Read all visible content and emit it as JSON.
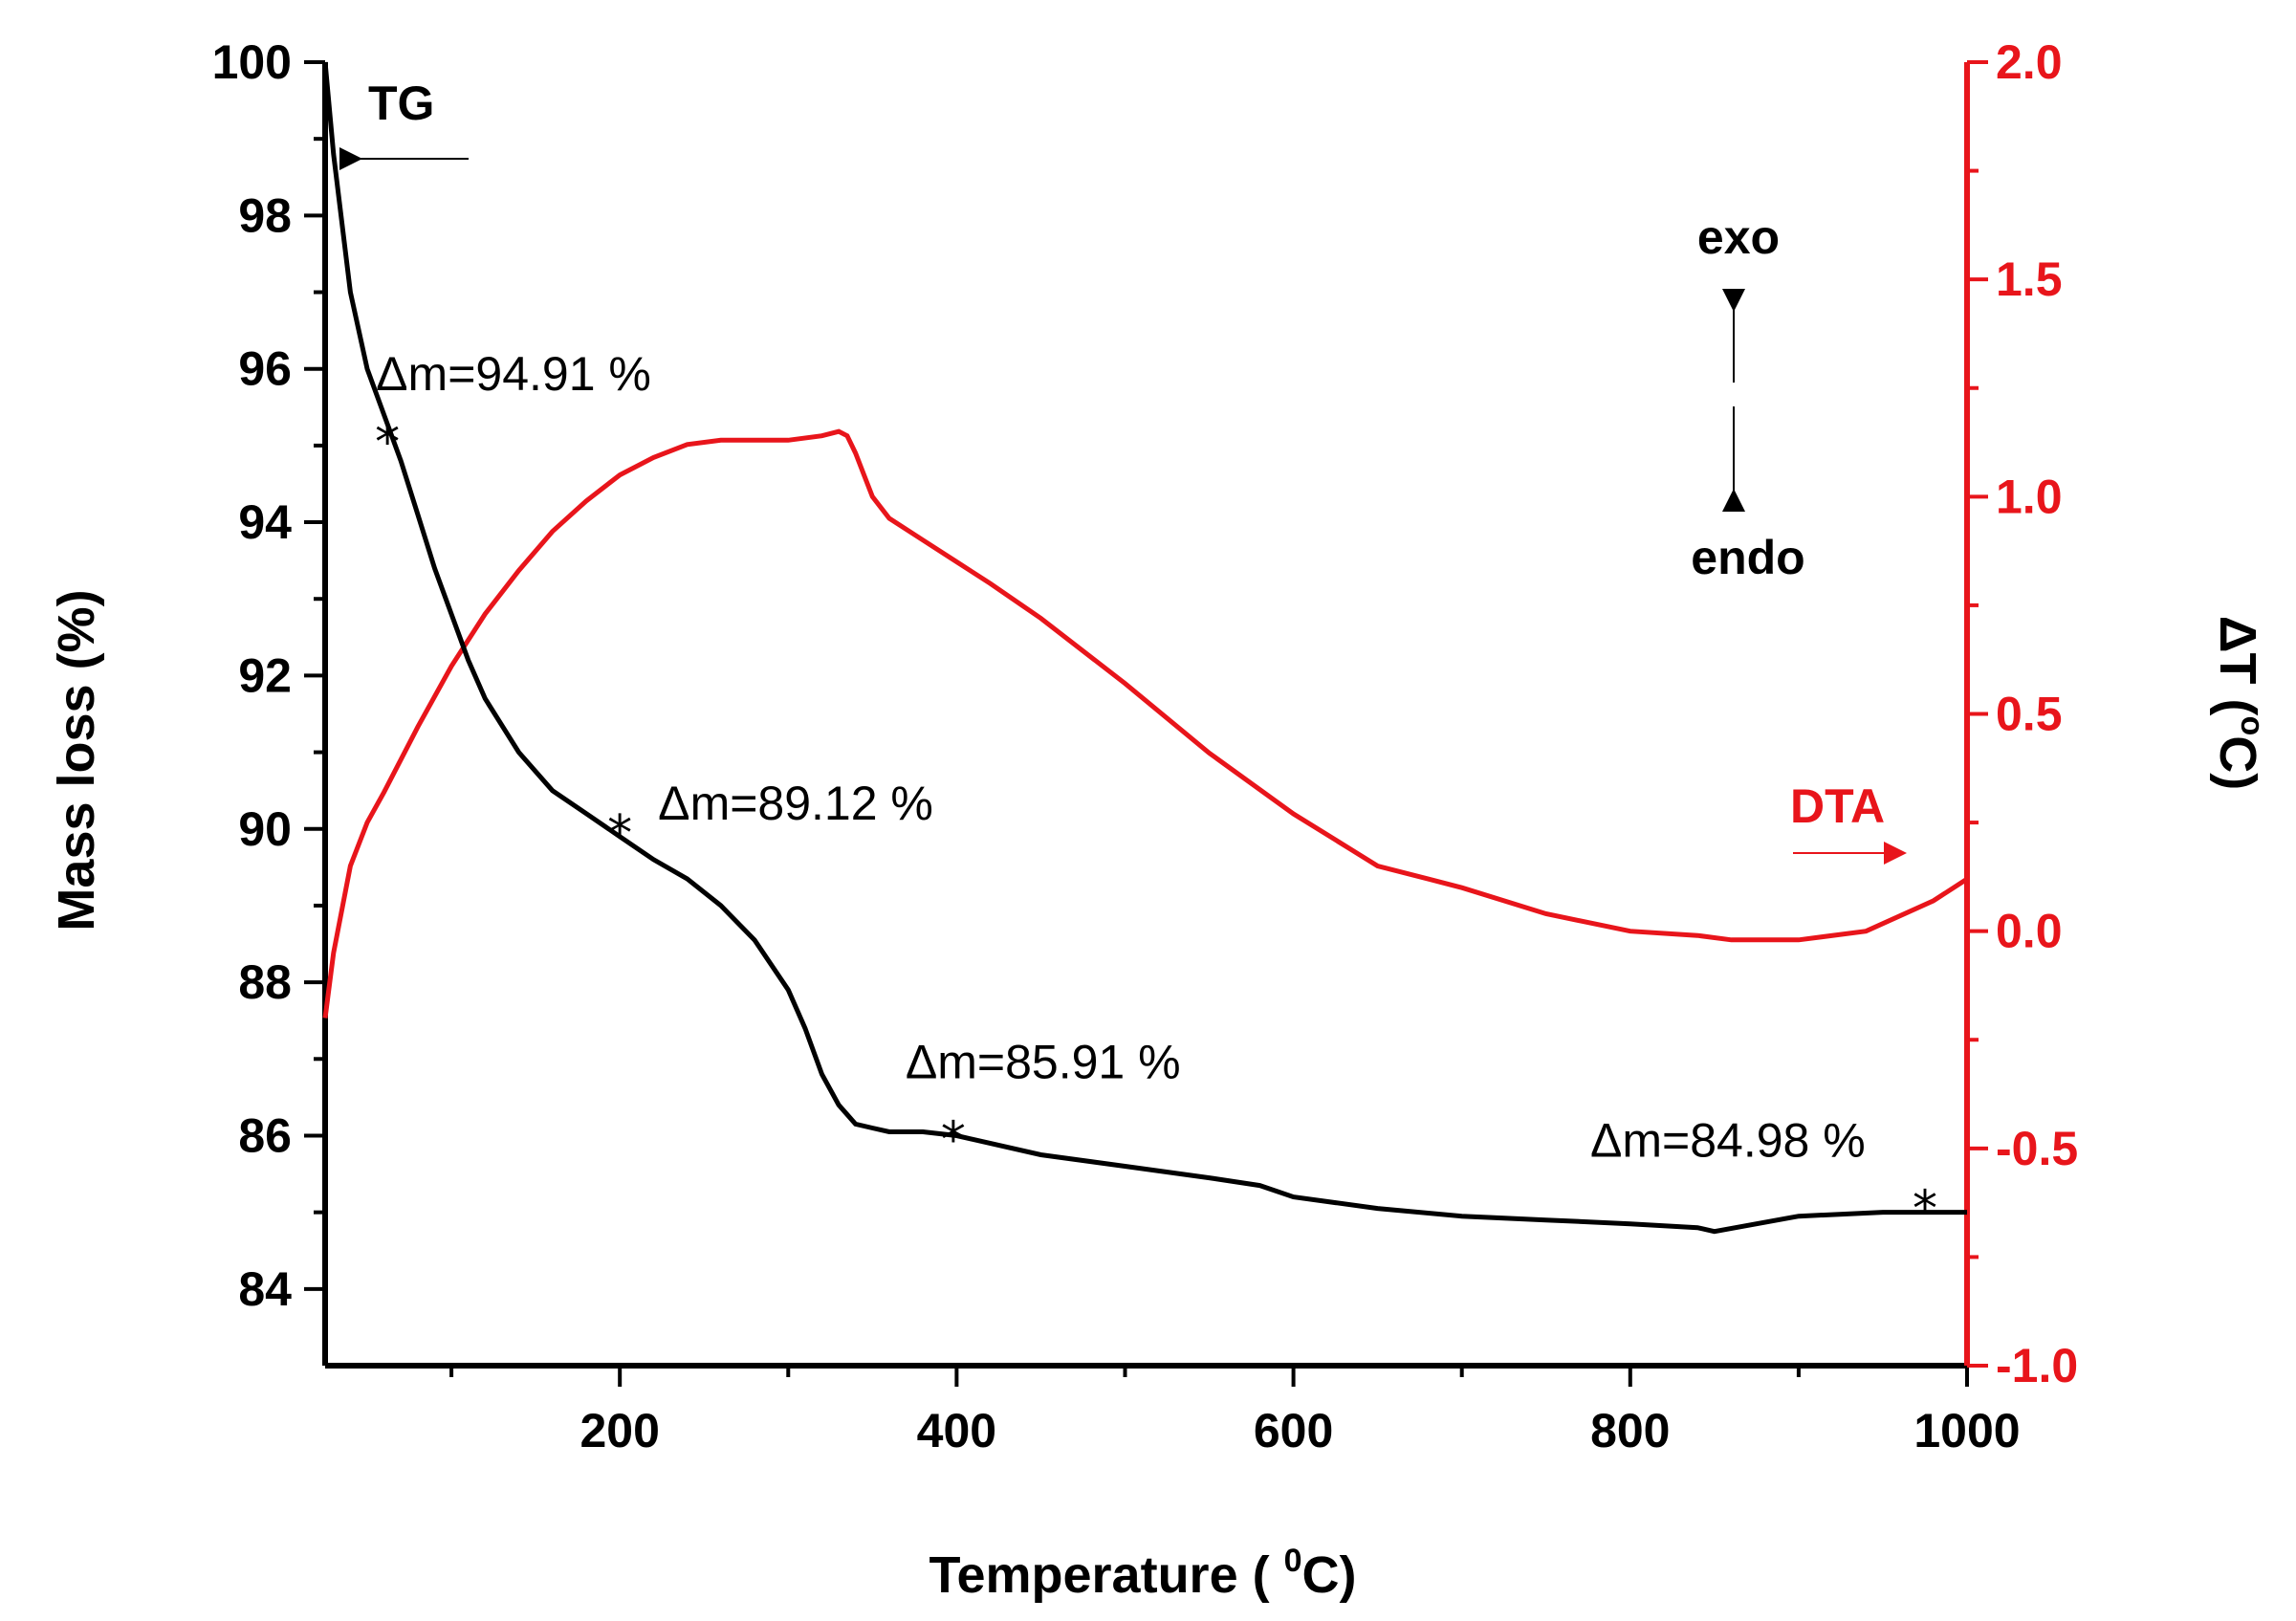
{
  "chart_data": {
    "type": "line",
    "xlabel": "Temperature ( °C)",
    "xlabel_main": "Temperature ( ",
    "xlabel_sup": "0",
    "xlabel_tail": "C)",
    "ylabel_left": "Mass loss (%)",
    "ylabel_right": "ΔT (°C)",
    "ylabel_right_main": "ΔT (",
    "ylabel_right_sup": "o",
    "ylabel_right_tail": "C)",
    "xlim": [
      25,
      1000
    ],
    "ylim_left": [
      83,
      100
    ],
    "ylim_right": [
      -1.0,
      2.0
    ],
    "x_ticks": [
      200,
      400,
      600,
      800,
      1000
    ],
    "x_tick_labels": [
      "200",
      "400",
      "600",
      "800",
      "1000"
    ],
    "y_left_ticks": [
      84,
      86,
      88,
      90,
      92,
      94,
      96,
      98,
      100
    ],
    "y_left_tick_labels": [
      "84",
      "86",
      "88",
      "90",
      "92",
      "94",
      "96",
      "98",
      "100"
    ],
    "y_right_ticks": [
      -1.0,
      -0.5,
      0.0,
      0.5,
      1.0,
      1.5,
      2.0
    ],
    "y_right_tick_labels": [
      "-1.0",
      "-0.5",
      "0.0",
      "0.5",
      "1.0",
      "1.5",
      "2.0"
    ],
    "colors": {
      "tg": "#000000",
      "dta": "#e8151b"
    },
    "series": [
      {
        "name": "TG",
        "axis": "left",
        "x": [
          25,
          30,
          40,
          50,
          60,
          70,
          80,
          90,
          100,
          110,
          120,
          140,
          160,
          180,
          200,
          220,
          240,
          260,
          280,
          300,
          310,
          320,
          330,
          340,
          350,
          360,
          380,
          400,
          450,
          500,
          550,
          580,
          600,
          650,
          700,
          750,
          800,
          840,
          850,
          900,
          950,
          1000
        ],
        "y": [
          100,
          98.8,
          97.0,
          96.0,
          95.4,
          94.8,
          94.1,
          93.4,
          92.8,
          92.2,
          91.7,
          91.0,
          90.5,
          90.2,
          89.9,
          89.6,
          89.35,
          89.0,
          88.55,
          87.9,
          87.4,
          86.8,
          86.4,
          86.15,
          86.1,
          86.05,
          86.05,
          86.0,
          85.75,
          85.6,
          85.45,
          85.35,
          85.2,
          85.05,
          84.95,
          84.9,
          84.85,
          84.8,
          84.75,
          84.95,
          85.0,
          85.0
        ]
      },
      {
        "name": "DTA",
        "axis": "right",
        "x": [
          25,
          30,
          40,
          50,
          60,
          80,
          100,
          120,
          140,
          160,
          180,
          200,
          220,
          240,
          260,
          280,
          300,
          320,
          330,
          335,
          340,
          345,
          350,
          360,
          380,
          400,
          420,
          450,
          500,
          550,
          600,
          650,
          680,
          700,
          750,
          800,
          840,
          860,
          900,
          940,
          980,
          1000
        ],
        "y": [
          -0.2,
          -0.05,
          0.15,
          0.25,
          0.32,
          0.47,
          0.61,
          0.73,
          0.83,
          0.92,
          0.99,
          1.05,
          1.09,
          1.12,
          1.13,
          1.13,
          1.13,
          1.14,
          1.15,
          1.14,
          1.1,
          1.05,
          1.0,
          0.95,
          0.9,
          0.85,
          0.8,
          0.72,
          0.57,
          0.41,
          0.27,
          0.15,
          0.12,
          0.1,
          0.04,
          0.0,
          -0.01,
          -0.02,
          -0.02,
          0.0,
          0.07,
          0.12
        ]
      }
    ],
    "markers": [
      {
        "x": 62,
        "y": 95.1,
        "label": "Δm=94.91 %"
      },
      {
        "x": 200,
        "y": 90.0,
        "label": "Δm=89.12 %"
      },
      {
        "x": 398,
        "y": 86.0,
        "label": "Δm=85.91 %"
      },
      {
        "x": 975,
        "y": 85.1,
        "label": "Δm=84.98 %"
      }
    ],
    "annotations": {
      "tg_label": "TG",
      "dta_label": "DTA",
      "exo_label": "exo",
      "endo_label": "endo"
    }
  }
}
